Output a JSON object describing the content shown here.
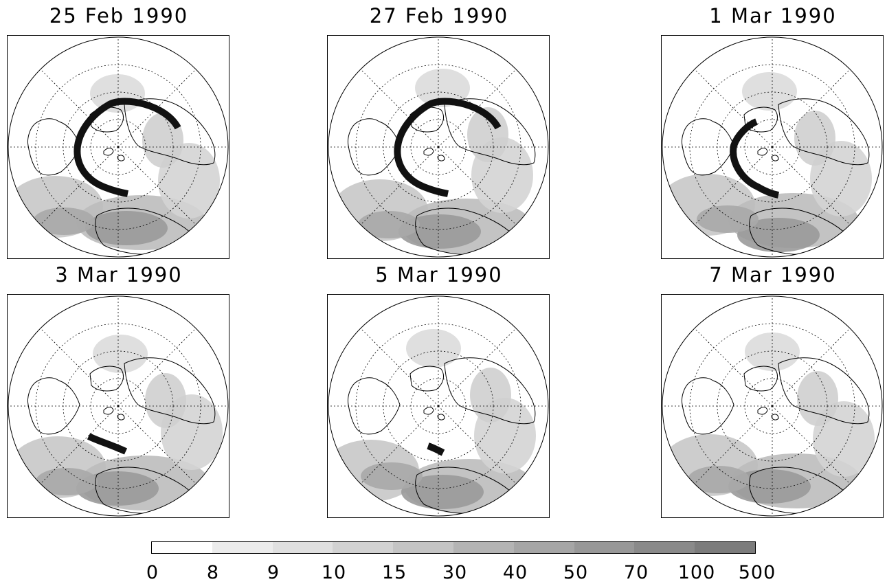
{
  "panels": [
    {
      "title": "25 Feb 1990",
      "trajectory": "long"
    },
    {
      "title": "27 Feb 1990",
      "trajectory": "long"
    },
    {
      "title": "1 Mar 1990",
      "trajectory": "medium"
    },
    {
      "title": "3 Mar 1990",
      "trajectory": "short"
    },
    {
      "title": "5 Mar 1990",
      "trajectory": "stub"
    },
    {
      "title": "7 Mar 1990",
      "trajectory": "none"
    }
  ],
  "colorbar": {
    "ticks": [
      "0",
      "8",
      "9",
      "10",
      "15",
      "30",
      "40",
      "50",
      "70",
      "100",
      "500"
    ],
    "colors": [
      "#ffffff",
      "#ececec",
      "#e0e0e0",
      "#d2d2d2",
      "#c4c4c4",
      "#b4b4b4",
      "#a6a6a6",
      "#989898",
      "#8a8a8a",
      "#7c7c7c"
    ]
  }
}
